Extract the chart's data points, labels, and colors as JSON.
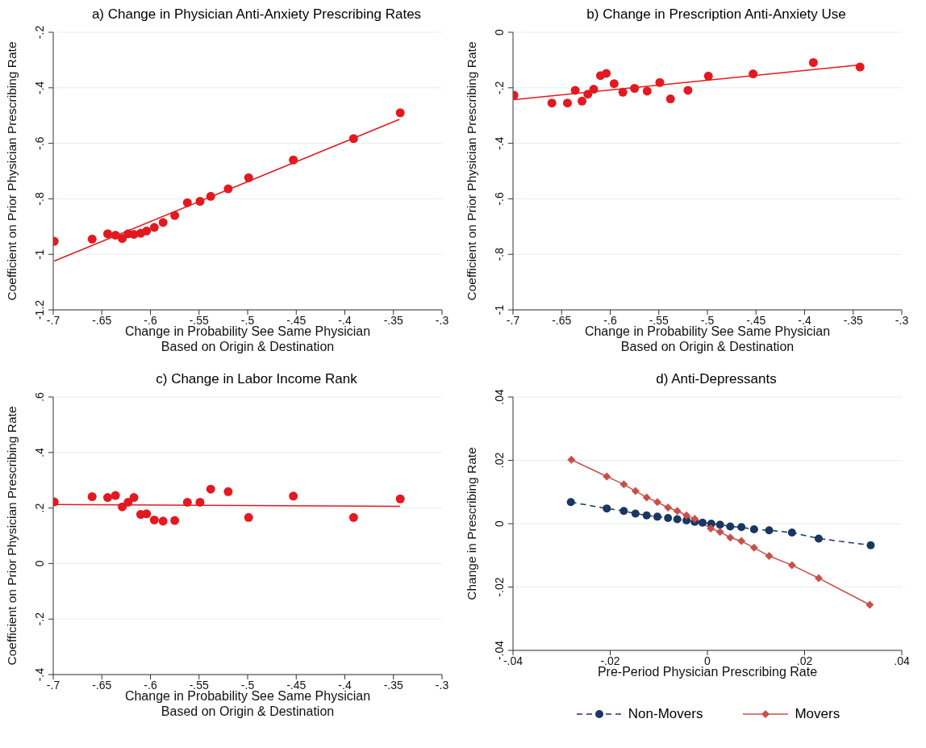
{
  "chart_data": [
    {
      "type": "scatter",
      "title": "a) Change in Physician Anti-Anxiety Prescribing Rates",
      "xlabel": "Change in Probability See Same Physician\nBased on Origin & Destination",
      "ylabel": "Coefficient on Prior Physician Prescribing Rate",
      "x": [
        -0.699,
        -0.66,
        -0.644,
        -0.636,
        -0.629,
        -0.623,
        -0.617,
        -0.61,
        -0.604,
        -0.596,
        -0.587,
        -0.575,
        -0.562,
        -0.549,
        -0.538,
        -0.52,
        -0.499,
        -0.453,
        -0.391,
        -0.343
      ],
      "series": [
        {
          "color": "#e3191f",
          "values": [
            -0.953,
            -0.945,
            -0.926,
            -0.931,
            -0.943,
            -0.926,
            -0.928,
            -0.924,
            -0.916,
            -0.903,
            -0.885,
            -0.86,
            -0.814,
            -0.809,
            -0.791,
            -0.764,
            -0.724,
            -0.66,
            -0.583,
            -0.49
          ]
        },
        {
          "type": "line",
          "color": "#e3191f",
          "marker": "none",
          "x": [
            -0.699,
            -0.344
          ],
          "values": [
            -1.024,
            -0.514
          ]
        }
      ],
      "xlim": [
        -0.7,
        -0.3
      ],
      "xticks": [
        {
          "value": -0.7,
          "label": "-.7"
        },
        {
          "value": -0.65,
          "label": "-.65"
        },
        {
          "value": -0.6,
          "label": "-.6"
        },
        {
          "value": -0.55,
          "label": "-.55"
        },
        {
          "value": -0.5,
          "label": "-.5"
        },
        {
          "value": -0.45,
          "label": "-.45"
        },
        {
          "value": -0.4,
          "label": "-.4"
        },
        {
          "value": -0.35,
          "label": "-.35"
        },
        {
          "value": -0.3,
          "label": "-.3"
        }
      ],
      "ylim": [
        -1.2,
        -0.2
      ],
      "yticks": [
        {
          "value": -1.2,
          "label": "-1.2"
        },
        {
          "value": -1,
          "label": "-1"
        },
        {
          "value": -0.8,
          "label": "-.8"
        },
        {
          "value": -0.6,
          "label": "-.6"
        },
        {
          "value": -0.4,
          "label": "-.4"
        },
        {
          "value": -0.2,
          "label": "-.2"
        }
      ],
      "grid": "y",
      "marker": "circle"
    },
    {
      "type": "scatter",
      "title": "b) Change in Prescription Anti-Anxiety Use",
      "xlabel": "Change in Probability See Same Physician\nBased on Origin & Destination",
      "ylabel": "Coefficient on Prior Physician Prescribing Rate",
      "x": [
        -0.699,
        -0.66,
        -0.644,
        -0.636,
        -0.629,
        -0.623,
        -0.617,
        -0.61,
        -0.604,
        -0.596,
        -0.587,
        -0.575,
        -0.562,
        -0.549,
        -0.538,
        -0.52,
        -0.499,
        -0.453,
        -0.391,
        -0.343
      ],
      "series": [
        {
          "color": "#e3191f",
          "values": [
            -0.227,
            -0.255,
            -0.255,
            -0.209,
            -0.248,
            -0.223,
            -0.205,
            -0.156,
            -0.148,
            -0.185,
            -0.216,
            -0.202,
            -0.212,
            -0.181,
            -0.24,
            -0.209,
            -0.158,
            -0.15,
            -0.109,
            -0.125
          ]
        },
        {
          "type": "line",
          "color": "#e3191f",
          "marker": "none",
          "x": [
            -0.699,
            -0.344
          ],
          "values": [
            -0.243,
            -0.118
          ]
        }
      ],
      "xlim": [
        -0.7,
        -0.3
      ],
      "xticks": [
        {
          "value": -0.7,
          "label": "-.7"
        },
        {
          "value": -0.65,
          "label": "-.65"
        },
        {
          "value": -0.6,
          "label": "-.6"
        },
        {
          "value": -0.55,
          "label": "-.55"
        },
        {
          "value": -0.5,
          "label": "-.5"
        },
        {
          "value": -0.45,
          "label": "-.45"
        },
        {
          "value": -0.4,
          "label": "-.4"
        },
        {
          "value": -0.35,
          "label": "-.35"
        },
        {
          "value": -0.3,
          "label": "-.3"
        }
      ],
      "ylim": [
        -1,
        0
      ],
      "yticks": [
        {
          "value": -1,
          "label": "-1"
        },
        {
          "value": -0.8,
          "label": "-.8"
        },
        {
          "value": -0.6,
          "label": "-.6"
        },
        {
          "value": -0.4,
          "label": "-.4"
        },
        {
          "value": -0.2,
          "label": "-.2"
        },
        {
          "value": 0,
          "label": "0"
        }
      ],
      "grid": "y",
      "marker": "circle"
    },
    {
      "type": "scatter",
      "title": "c) Change in Labor Income Rank",
      "xlabel": "Change in Probability See Same Physician\nBased on Origin & Destination",
      "ylabel": "Coefficient on Prior Physician Prescribing Rate",
      "x": [
        -0.699,
        -0.66,
        -0.644,
        -0.636,
        -0.629,
        -0.623,
        -0.617,
        -0.61,
        -0.604,
        -0.596,
        -0.587,
        -0.575,
        -0.562,
        -0.549,
        -0.538,
        -0.52,
        -0.499,
        -0.453,
        -0.391,
        -0.343
      ],
      "series": [
        {
          "color": "#e3191f",
          "values": [
            0.222,
            0.241,
            0.238,
            0.245,
            0.204,
            0.221,
            0.238,
            0.177,
            0.179,
            0.157,
            0.153,
            0.155,
            0.221,
            0.221,
            0.268,
            0.259,
            0.166,
            0.243,
            0.166,
            0.233
          ]
        },
        {
          "type": "line",
          "color": "#e3191f",
          "marker": "none",
          "x": [
            -0.699,
            -0.343
          ],
          "values": [
            0.213,
            0.206
          ]
        }
      ],
      "xlim": [
        -0.7,
        -0.3
      ],
      "xticks": [
        {
          "value": -0.7,
          "label": "-.7"
        },
        {
          "value": -0.65,
          "label": "-.65"
        },
        {
          "value": -0.6,
          "label": "-.6"
        },
        {
          "value": -0.55,
          "label": "-.55"
        },
        {
          "value": -0.5,
          "label": "-.5"
        },
        {
          "value": -0.45,
          "label": "-.45"
        },
        {
          "value": -0.4,
          "label": "-.4"
        },
        {
          "value": -0.35,
          "label": "-.35"
        },
        {
          "value": -0.3,
          "label": "-.3"
        }
      ],
      "ylim": [
        -0.4,
        0.6
      ],
      "yticks": [
        {
          "value": -0.4,
          "label": "-.4"
        },
        {
          "value": -0.2,
          "label": "-.2"
        },
        {
          "value": 0,
          "label": "0"
        },
        {
          "value": 0.2,
          "label": ".2"
        },
        {
          "value": 0.4,
          "label": ".4"
        },
        {
          "value": 0.6,
          "label": ".6"
        }
      ],
      "grid": "y",
      "marker": "circle"
    },
    {
      "type": "line",
      "title": "d) Anti-Depressants",
      "xlabel": "Pre-Period Physician Prescribing Rate",
      "ylabel": "Change in  Prescribing Rate",
      "series": [
        {
          "name": "Non-Movers",
          "color": "#1a3661",
          "marker": "circle",
          "line_style": "dashed",
          "x": [
            -0.0281,
            -0.0207,
            -0.0172,
            -0.0148,
            -0.0125,
            -0.0103,
            -0.0081,
            -0.0062,
            -0.0043,
            -0.0026,
            -0.001,
            0.0008,
            0.0026,
            0.0047,
            0.007,
            0.0096,
            0.0127,
            0.0174,
            0.0229,
            0.0336
          ],
          "values": [
            0.0068,
            0.0048,
            0.004,
            0.0032,
            0.0026,
            0.0022,
            0.0018,
            0.0014,
            0.001,
            0.0006,
            0.0003,
            0,
            -0.0003,
            -0.0009,
            -0.0011,
            -0.0018,
            -0.0021,
            -0.0028,
            -0.0047,
            -0.0068
          ]
        },
        {
          "name": "Movers",
          "color": "#c9504a",
          "marker": "diamond",
          "line_style": "solid",
          "x": [
            -0.028,
            -0.0207,
            -0.0172,
            -0.0148,
            -0.0125,
            -0.0103,
            -0.0081,
            -0.0062,
            -0.0043,
            -0.0026,
            0.0007,
            0.0026,
            0.0047,
            0.007,
            0.0096,
            0.0127,
            0.0174,
            0.0229,
            0.0334
          ],
          "values": [
            0.0202,
            0.0149,
            0.0124,
            0.0103,
            0.0083,
            0.0068,
            0.0051,
            0.004,
            0.0026,
            0.0015,
            -0.0015,
            -0.0026,
            -0.0044,
            -0.0055,
            -0.0076,
            -0.0102,
            -0.0131,
            -0.0172,
            -0.0256
          ]
        }
      ],
      "xlim": [
        -0.04,
        0.04
      ],
      "xticks": [
        {
          "value": -0.04,
          "label": "-.04"
        },
        {
          "value": -0.02,
          "label": "-.02"
        },
        {
          "value": 0,
          "label": "0"
        },
        {
          "value": 0.02,
          "label": ".02"
        },
        {
          "value": 0.04,
          "label": ".04"
        }
      ],
      "ylim": [
        -0.04,
        0.04
      ],
      "yticks": [
        {
          "value": -0.04,
          "label": "-.04"
        },
        {
          "value": -0.02,
          "label": "-.02"
        },
        {
          "value": 0,
          "label": "0"
        },
        {
          "value": 0.02,
          "label": ".02"
        },
        {
          "value": 0.04,
          "label": ".04"
        }
      ],
      "grid": "y",
      "legend": "bottom"
    }
  ]
}
